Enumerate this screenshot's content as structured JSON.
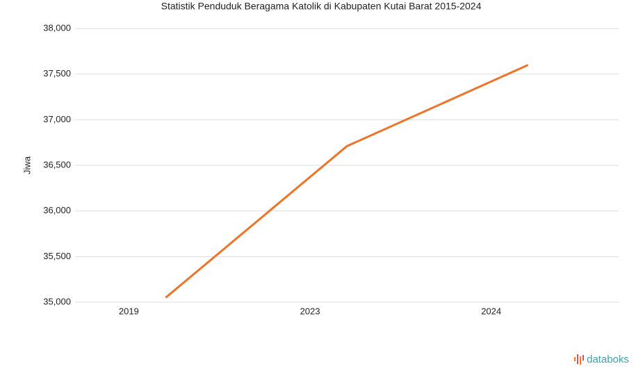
{
  "chart_data": {
    "type": "line",
    "title": "Statistik Penduduk Beragama Katolik di Kabupaten Kutai Barat 2015-2024",
    "y_label": "Jiwa",
    "categories": [
      "2019",
      "2023",
      "2024"
    ],
    "series": [
      {
        "name": "Jiwa",
        "color": "#f07427",
        "values": [
          35050,
          36710,
          37600
        ]
      }
    ],
    "ylim": [
      35000,
      38000
    ],
    "yticks": [
      {
        "value": 35000,
        "label": "35,000"
      },
      {
        "value": 35500,
        "label": "35,500"
      },
      {
        "value": 36000,
        "label": "36,000"
      },
      {
        "value": 36500,
        "label": "36,500"
      },
      {
        "value": 37000,
        "label": "37,000"
      },
      {
        "value": 37500,
        "label": "37,500"
      },
      {
        "value": 38000,
        "label": "38,000"
      }
    ],
    "grid": true
  },
  "brand": "databoks"
}
